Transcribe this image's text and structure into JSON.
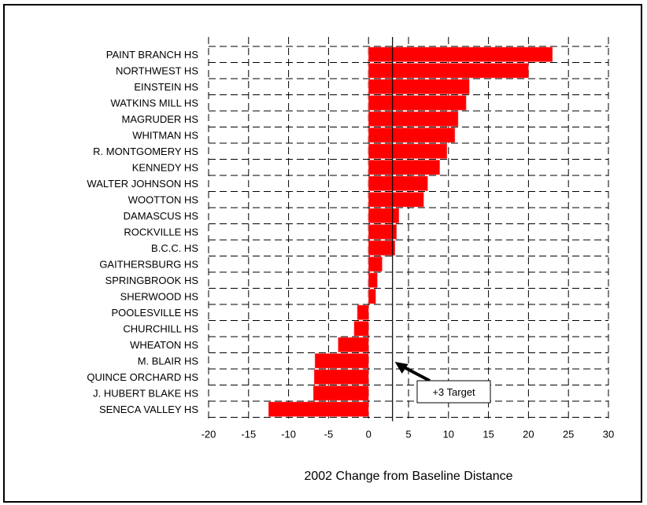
{
  "chart_data": {
    "type": "bar",
    "orientation": "horizontal",
    "title": "",
    "xlabel": "2002 Change from Baseline Distance",
    "ylabel": "",
    "xlim": [
      -20,
      30
    ],
    "xticks": [
      -20,
      -15,
      -10,
      -5,
      0,
      5,
      10,
      15,
      20,
      25,
      30
    ],
    "grid": true,
    "bar_color": "#ff0000",
    "categories": [
      "PAINT BRANCH HS",
      "NORTHWEST HS",
      "EINSTEIN HS",
      "WATKINS MILL HS",
      "MAGRUDER HS",
      "WHITMAN HS",
      "R. MONTGOMERY HS",
      "KENNEDY HS",
      "WALTER JOHNSON HS",
      "WOOTTON HS",
      "DAMASCUS HS",
      "ROCKVILLE HS",
      "B.C.C. HS",
      "GAITHERSBURG HS",
      "SPRINGBROOK HS",
      "SHERWOOD HS",
      "POOLESVILLE HS",
      "CHURCHILL HS",
      "WHEATON HS",
      "M. BLAIR HS",
      "QUINCE ORCHARD HS",
      "J. HUBERT BLAKE HS",
      "SENECA VALLEY HS"
    ],
    "values": [
      23,
      20,
      12.6,
      12.2,
      11.2,
      10.8,
      9.8,
      8.9,
      7.4,
      6.9,
      3.8,
      3.5,
      3.3,
      1.7,
      1.1,
      0.9,
      -1.4,
      -1.8,
      -3.8,
      -6.7,
      -6.8,
      -6.9,
      -12.5
    ],
    "reference_line": {
      "x": 3
    },
    "annotation": {
      "text": "+3 Target",
      "target_x": 3
    }
  }
}
